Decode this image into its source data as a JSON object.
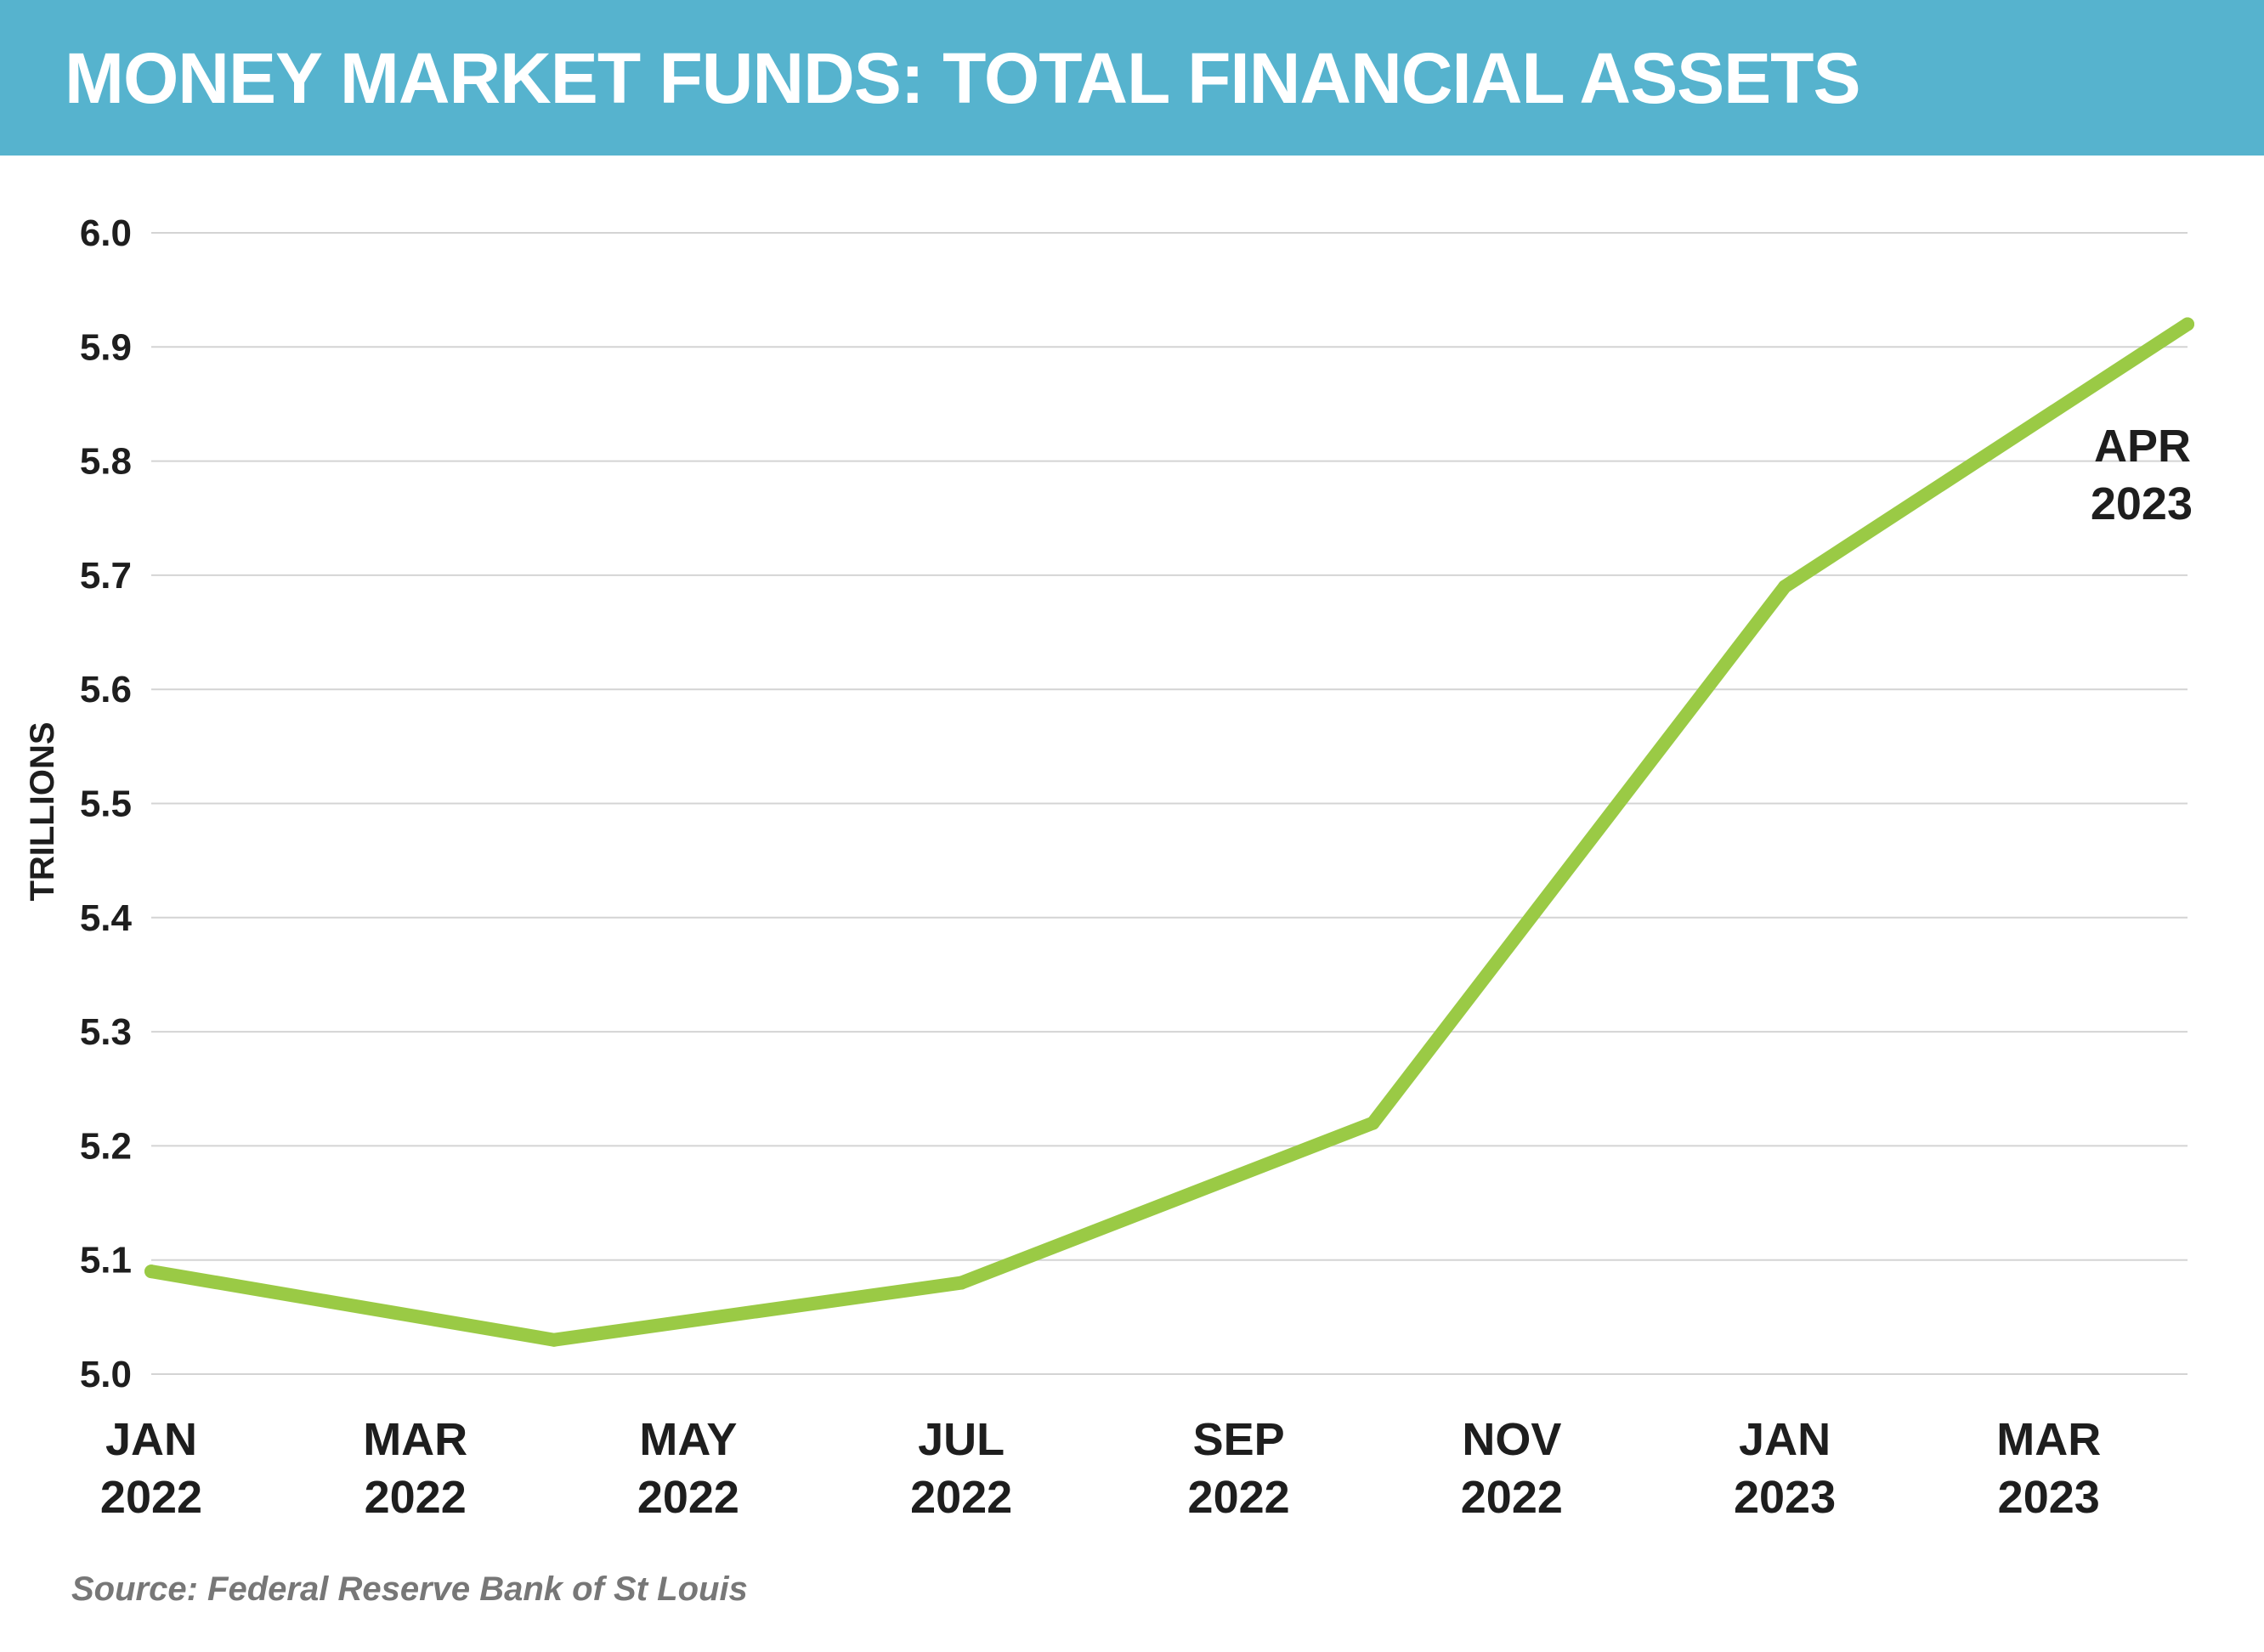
{
  "title": "MONEY MARKET FUNDS: TOTAL FINANCIAL ASSETS",
  "source": "Source: Federal Reserve Bank of St Louis",
  "colors": {
    "header": "#56b3ce",
    "line": "#9aca45",
    "grid": "#d4d4d4",
    "text": "#1e1e1e",
    "source": "#777777"
  },
  "chart_data": {
    "type": "line",
    "title": "MONEY MARKET FUNDS: TOTAL FINANCIAL ASSETS",
    "xlabel": "",
    "ylabel": "TRILLIONS",
    "ylim": [
      5.0,
      6.0
    ],
    "yticks": [
      "5.0",
      "5.1",
      "5.2",
      "5.3",
      "5.4",
      "5.5",
      "5.6",
      "5.7",
      "5.8",
      "5.9",
      "6.0"
    ],
    "xticks": [
      {
        "month": "JAN",
        "year": "2022"
      },
      {
        "month": "MAR",
        "year": "2022"
      },
      {
        "month": "MAY",
        "year": "2022"
      },
      {
        "month": "JUL",
        "year": "2022"
      },
      {
        "month": "SEP",
        "year": "2022"
      },
      {
        "month": "NOV",
        "year": "2022"
      },
      {
        "month": "JAN",
        "year": "2023"
      },
      {
        "month": "MAR",
        "year": "2023"
      }
    ],
    "grid": true,
    "series": [
      {
        "x": [
          "2022-01",
          "2022-04",
          "2022-07",
          "2022-10",
          "2023-01",
          "2023-04"
        ],
        "values": [
          5.09,
          5.03,
          5.08,
          5.22,
          5.69,
          5.92
        ]
      }
    ],
    "annotation": {
      "line1": "APR",
      "line2": "2023"
    }
  }
}
